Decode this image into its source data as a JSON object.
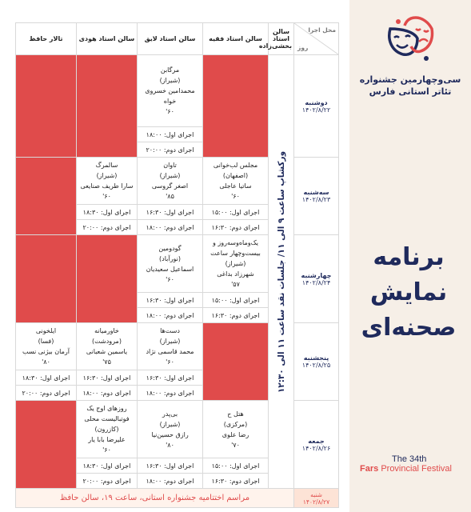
{
  "festival": {
    "title_line1": "سی‌وچهارمین جشنواره",
    "title_line2": "تئاتر استانی فارس",
    "program_title": "برنامه نمایش صحنه‌ای",
    "edition_number": "The 34th",
    "edition_word": "Fars",
    "edition_rest": "Provincial Festival",
    "colors": {
      "accent": "#e04b4b",
      "navy": "#1f2a5c",
      "panel": "#f6efe7"
    }
  },
  "table": {
    "corner_top": "محل اجرا",
    "corner_bottom": "روز",
    "venues": [
      "سالن استاد بخشی‌زاده",
      "سالن استاد فقیه",
      "سالن استاد لایق",
      "سالن استاد هودی",
      "تالار حافظ"
    ],
    "workshop_text": "ورکشاپ ساعت ۹ الی ۱۱/ جلسات نقد ساعت ۱۱ الی ۱۲:۳۰",
    "days": [
      {
        "name": "دوشنبه",
        "date": "۱۴۰۲/۸/۲۲",
        "faqih": null,
        "layegh": {
          "title": "مرگابن",
          "city": "(شیراز)",
          "director": "محمدامین خسروی خواه",
          "duration": "۶۰'",
          "perf1": "اجرای اول: ۱۸:۰۰",
          "perf2": "اجرای دوم: ۲۰:۰۰"
        },
        "hoodi": null,
        "hafez": null
      },
      {
        "name": "سه‌شنبه",
        "date": "۱۴۰۲/۸/۲۳",
        "faqih": {
          "title": "مجلس لب‌خوانی",
          "city": "(اصفهان)",
          "director": "ساتیا عاجلی",
          "duration": "۶۰'",
          "perf1": "اجرای اول: ۱۵:۰۰",
          "perf2": "اجرای دوم: ۱۶:۳۰"
        },
        "layegh": {
          "title": "تاوان",
          "city": "(شیراز)",
          "director": "اصغر گروسی",
          "duration": "۸۵'",
          "perf1": "اجرای اول: ۱۶:۳۰",
          "perf2": "اجرای دوم: ۱۸:۰۰"
        },
        "hoodi": {
          "title": "سالمرگ",
          "city": "(شیراز)",
          "director": "سارا طریف صنایعی",
          "duration": "۶۰'",
          "perf1": "اجرای اول: ۱۸:۳۰",
          "perf2": "اجرای دوم: ۲۰:۰۰"
        },
        "hafez": null
      },
      {
        "name": "چهارشنبه",
        "date": "۱۴۰۲/۸/۲۴",
        "faqih": {
          "title": "یک‌وماه‌وسه‌روز و بیست‌وچهار ساعت",
          "city": "(شیراز)",
          "director": "شهرزاد بداغی",
          "duration": "۵۷'",
          "perf1": "اجرای اول: ۱۵:۰۰",
          "perf2": "اجرای دوم: ۱۶:۳۰"
        },
        "layegh": {
          "title": "گودومین",
          "city": "(نورآباد)",
          "director": "اسماعیل سعیدیان",
          "duration": "۶۰'",
          "perf1": "اجرای اول: ۱۶:۳۰",
          "perf2": "اجرای دوم: ۱۸:۰۰"
        },
        "hoodi": null,
        "hafez": null
      },
      {
        "name": "پنجشنبه",
        "date": "۱۴۰۲/۸/۲۵",
        "faqih": null,
        "layegh": {
          "title": "دست‌ها",
          "city": "(شیراز)",
          "director": "محمد قاسمی نژاد",
          "duration": "۶۰'",
          "perf1": "اجرای اول: ۱۶:۳۰",
          "perf2": "اجرای دوم: ۱۸:۰۰"
        },
        "hoodi": {
          "title": "خاورمیانه",
          "city": "(مرودشت)",
          "director": "یاسمین شعبانی",
          "duration": "۷۵'",
          "perf1": "اجرای اول: ۱۶:۳۰",
          "perf2": "اجرای دوم: ۱۸:۰۰"
        },
        "hafez": {
          "title": "ایلخونی",
          "city": "(فسا)",
          "director": "آرمان بیژنی نسب",
          "duration": "۸۰'",
          "perf1": "اجرای اول: ۱۸:۳۰",
          "perf2": "اجرای دوم: ۲۰:۰۰"
        }
      },
      {
        "name": "جمعه",
        "date": "۱۴۰۲/۸/۲۶",
        "faqih": {
          "title": "هتل ح",
          "city": "(مرکزی)",
          "director": "رضا علوی",
          "duration": "۷۰'",
          "perf1": "اجرای اول: ۱۵:۰۰",
          "perf2": "اجرای دوم: ۱۶:۳۰"
        },
        "layegh": {
          "title": "بی‌پدر",
          "city": "(شیراز)",
          "director": "رازق حسین‌نیا",
          "duration": "۸۰'",
          "perf1": "اجرای اول: ۱۶:۳۰",
          "perf2": "اجرای دوم: ۱۸:۰۰"
        },
        "hoodi": {
          "title": "روزهای اوج یک فوتبالیست محلی",
          "city": "(کازرون)",
          "director": "علیرضا بابا یار",
          "duration": "۶۰'",
          "perf1": "اجرای اول: ۱۸:۳۰",
          "perf2": "اجرای دوم: ۲۰:۰۰"
        },
        "hafez": null
      }
    ],
    "closing": {
      "day": "شنبه",
      "date": "۱۴۰۲/۸/۲۷",
      "text": "مراسم اختتامیه جشنواره استانی، ساعت ۱۹، سالن حافظ"
    }
  }
}
